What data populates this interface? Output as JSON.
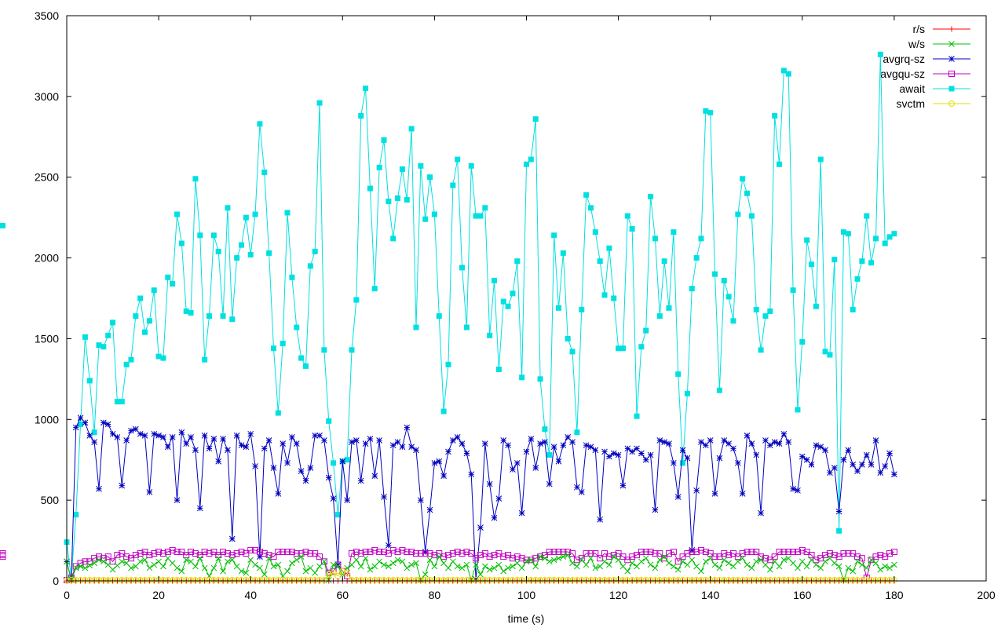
{
  "chart_data": {
    "type": "line",
    "title": "",
    "xlabel": "time (s)",
    "ylabel": "",
    "xlim": [
      0,
      200
    ],
    "ylim": [
      0,
      3500
    ],
    "xticks": [
      0,
      20,
      40,
      60,
      80,
      100,
      120,
      140,
      160,
      180,
      200
    ],
    "yticks": [
      0,
      500,
      1000,
      1500,
      2000,
      2500,
      3000,
      3500
    ],
    "xtick_labels": [
      "0",
      "20",
      "40",
      "60",
      "80",
      "100",
      "120",
      "140",
      "160",
      "180",
      "200"
    ],
    "ytick_labels": [
      "0",
      "500",
      "1000",
      "1500",
      "2000",
      "2500",
      "3000",
      "3500"
    ],
    "grid": false,
    "legend_position": "top-right",
    "x": {
      "start": 0,
      "step": 1,
      "count": 181
    },
    "series": [
      {
        "name": "r/s",
        "color": "#ff0000",
        "marker": "plus",
        "values": [
          0,
          0,
          0,
          0,
          0,
          0,
          0,
          0,
          0,
          0,
          0,
          0,
          0,
          0,
          0,
          0,
          0,
          0,
          0,
          0,
          0,
          0,
          0,
          0,
          0,
          0,
          0,
          0,
          0,
          0,
          0,
          0,
          0,
          0,
          0,
          0,
          0,
          0,
          0,
          0,
          0,
          0,
          0,
          0,
          0,
          0,
          0,
          0,
          0,
          0,
          0,
          0,
          0,
          0,
          0,
          0,
          0,
          0,
          0,
          0,
          0,
          0,
          0,
          0,
          0,
          0,
          0,
          0,
          0,
          0,
          0,
          0,
          0,
          0,
          0,
          0,
          0,
          0,
          0,
          0,
          0,
          0,
          0,
          0,
          0,
          0,
          0,
          0,
          0,
          0,
          0,
          0,
          0,
          0,
          0,
          0,
          0,
          0,
          0,
          0,
          0,
          0,
          0,
          0,
          0,
          0,
          0,
          0,
          0,
          0,
          0,
          0,
          0,
          0,
          0,
          0,
          0,
          0,
          0,
          0,
          0,
          0,
          0,
          0,
          0,
          0,
          0,
          0,
          0,
          0,
          0,
          0,
          0,
          0,
          0,
          0,
          0,
          0,
          0,
          0,
          0,
          0,
          0,
          0,
          0,
          0,
          0,
          0,
          0,
          0,
          0,
          0,
          0,
          0,
          0,
          0,
          0,
          0,
          0,
          0,
          0,
          0,
          0,
          0,
          0,
          0,
          0,
          0,
          0,
          0,
          0,
          0,
          0,
          0,
          0,
          0,
          0,
          0,
          0,
          0,
          0
        ]
      },
      {
        "name": "w/s",
        "color": "#00c000",
        "marker": "cross",
        "values": [
          120,
          5,
          80,
          90,
          80,
          95,
          110,
          130,
          120,
          100,
          70,
          95,
          120,
          110,
          80,
          90,
          120,
          130,
          80,
          100,
          120,
          90,
          140,
          110,
          80,
          60,
          130,
          120,
          90,
          140,
          80,
          30,
          80,
          140,
          60,
          120,
          130,
          90,
          60,
          50,
          130,
          100,
          80,
          40,
          140,
          90,
          100,
          30,
          60,
          110,
          130,
          150,
          60,
          80,
          50,
          90,
          120,
          5,
          100,
          90,
          40,
          80,
          100,
          130,
          90,
          140,
          70,
          90,
          120,
          100,
          90,
          110,
          130,
          120,
          80,
          100,
          110,
          5,
          40,
          130,
          90,
          150,
          110,
          80,
          120,
          90,
          80,
          100,
          5,
          100,
          40,
          90,
          70,
          80,
          100,
          60,
          80,
          90,
          110,
          80,
          120,
          130,
          90,
          150,
          140,
          120,
          130,
          140,
          150,
          160,
          110,
          90,
          130,
          100,
          140,
          80,
          90,
          120,
          100,
          150,
          130,
          90,
          60,
          110,
          90,
          120,
          140,
          100,
          80,
          130,
          150,
          110,
          90,
          70,
          120,
          100,
          130,
          90,
          60,
          120,
          140,
          100,
          80,
          130,
          110,
          90,
          120,
          140,
          100,
          80,
          120,
          130,
          100,
          70,
          120,
          90,
          130,
          140,
          110,
          80,
          120,
          90,
          130,
          100,
          80,
          120,
          140,
          110,
          90,
          5,
          80,
          60,
          120,
          100,
          80,
          130,
          110,
          70,
          90,
          80,
          100
        ]
      },
      {
        "name": "avgrq-sz",
        "color": "#0000c0",
        "marker": "star",
        "values": [
          120,
          5,
          950,
          1010,
          980,
          900,
          860,
          570,
          980,
          970,
          910,
          890,
          590,
          870,
          930,
          940,
          910,
          900,
          550,
          910,
          900,
          890,
          830,
          890,
          500,
          920,
          850,
          890,
          810,
          450,
          900,
          820,
          880,
          740,
          880,
          810,
          260,
          900,
          840,
          830,
          910,
          710,
          150,
          820,
          870,
          700,
          540,
          850,
          730,
          890,
          850,
          680,
          620,
          700,
          900,
          900,
          870,
          640,
          510,
          100,
          740,
          500,
          860,
          870,
          620,
          850,
          880,
          650,
          870,
          520,
          220,
          840,
          860,
          830,
          950,
          830,
          810,
          500,
          180,
          440,
          730,
          740,
          650,
          800,
          870,
          890,
          850,
          790,
          660,
          10,
          330,
          850,
          600,
          390,
          510,
          870,
          840,
          690,
          730,
          420,
          800,
          880,
          700,
          850,
          860,
          600,
          830,
          740,
          840,
          890,
          860,
          580,
          550,
          840,
          830,
          810,
          380,
          800,
          770,
          790,
          780,
          590,
          820,
          800,
          820,
          790,
          750,
          780,
          440,
          870,
          860,
          850,
          730,
          520,
          810,
          760,
          190,
          560,
          860,
          840,
          870,
          540,
          760,
          870,
          850,
          820,
          730,
          540,
          900,
          850,
          780,
          420,
          870,
          840,
          860,
          850,
          910,
          860,
          570,
          560,
          770,
          750,
          720,
          840,
          830,
          810,
          670,
          700,
          430,
          750,
          810,
          720,
          680,
          720,
          780,
          720,
          870,
          670,
          710,
          790,
          660
        ]
      },
      {
        "name": "avgqu-sz",
        "color": "#c000c0",
        "marker": "box",
        "values": [
          5,
          20,
          90,
          110,
          120,
          120,
          140,
          150,
          140,
          150,
          120,
          160,
          170,
          150,
          140,
          160,
          170,
          180,
          160,
          170,
          180,
          170,
          180,
          190,
          180,
          180,
          160,
          180,
          170,
          160,
          180,
          170,
          180,
          160,
          180,
          170,
          160,
          170,
          180,
          170,
          190,
          190,
          180,
          170,
          160,
          150,
          180,
          180,
          180,
          180,
          170,
          170,
          180,
          170,
          170,
          150,
          120,
          50,
          60,
          100,
          60,
          30,
          170,
          180,
          170,
          180,
          180,
          190,
          180,
          180,
          170,
          190,
          180,
          190,
          180,
          180,
          170,
          170,
          170,
          170,
          160,
          170,
          150,
          160,
          170,
          180,
          170,
          180,
          170,
          140,
          160,
          170,
          150,
          160,
          170,
          150,
          160,
          140,
          150,
          140,
          130,
          130,
          140,
          150,
          160,
          180,
          180,
          180,
          180,
          180,
          170,
          130,
          140,
          170,
          170,
          170,
          140,
          170,
          150,
          160,
          170,
          150,
          130,
          150,
          160,
          180,
          180,
          180,
          170,
          170,
          140,
          170,
          180,
          120,
          150,
          170,
          180,
          180,
          190,
          180,
          170,
          150,
          150,
          170,
          160,
          170,
          150,
          170,
          180,
          180,
          180,
          150,
          140,
          130,
          150,
          180,
          180,
          180,
          180,
          180,
          190,
          180,
          160,
          130,
          140,
          160,
          170,
          160,
          150,
          170,
          170,
          170,
          150,
          140,
          20,
          130,
          150,
          160,
          150,
          170,
          180,
          170,
          150,
          170,
          160,
          170,
          170
        ]
      },
      {
        "name": "await",
        "color": "#00e0e0",
        "marker": "filled-box",
        "values": [
          240,
          20,
          410,
          970,
          1510,
          1240,
          920,
          1460,
          1450,
          1520,
          1600,
          1110,
          1110,
          1340,
          1370,
          1640,
          1750,
          1540,
          1610,
          1800,
          1390,
          1380,
          1880,
          1840,
          2270,
          2090,
          1670,
          1660,
          2490,
          2140,
          1370,
          1640,
          2140,
          2040,
          1640,
          2310,
          1620,
          2000,
          2080,
          2250,
          2020,
          2270,
          2830,
          2530,
          2030,
          1440,
          1040,
          1470,
          2280,
          1880,
          1570,
          1380,
          1330,
          1950,
          2040,
          2960,
          1430,
          990,
          730,
          410,
          740,
          750,
          1430,
          1740,
          2880,
          3050,
          2430,
          1810,
          2560,
          2730,
          2350,
          2120,
          2370,
          2550,
          2360,
          2800,
          1570,
          2570,
          2240,
          2500,
          2270,
          1640,
          1050,
          1340,
          2450,
          2610,
          1940,
          1570,
          2570,
          2260,
          2260,
          2310,
          1520,
          1860,
          1310,
          1730,
          1700,
          1780,
          1980,
          1260,
          2580,
          2610,
          2860,
          1250,
          940,
          780,
          2140,
          1690,
          2030,
          1500,
          1420,
          920,
          1680,
          2390,
          2310,
          2160,
          1980,
          1770,
          2060,
          1750,
          1440,
          1440,
          2260,
          2180,
          1020,
          1450,
          1550,
          2380,
          2120,
          1640,
          1980,
          1690,
          2160,
          1280,
          730,
          1160,
          1810,
          2000,
          2120,
          2910,
          2900,
          1900,
          1180,
          1860,
          1760,
          1610,
          2270,
          2490,
          2400,
          2260,
          1680,
          1430,
          1640,
          1670,
          2880,
          2580,
          3160,
          3140,
          1800,
          1060,
          1480,
          2110,
          1960,
          1700,
          2610,
          1420,
          1400,
          1990,
          310,
          2160,
          2150,
          1680,
          1870,
          1980,
          2260,
          1970,
          2120,
          3260,
          2090,
          2130,
          2150,
          2200
        ]
      },
      {
        "name": "svctm",
        "color": "#e0e000",
        "marker": "circle",
        "values": [
          5,
          5,
          5,
          5,
          5,
          5,
          5,
          5,
          5,
          5,
          5,
          5,
          5,
          5,
          5,
          5,
          5,
          5,
          5,
          5,
          5,
          5,
          5,
          5,
          5,
          5,
          5,
          5,
          5,
          5,
          5,
          5,
          5,
          5,
          5,
          5,
          5,
          5,
          5,
          5,
          5,
          5,
          5,
          5,
          5,
          5,
          5,
          5,
          5,
          5,
          5,
          5,
          5,
          5,
          5,
          5,
          5,
          40,
          50,
          30,
          60,
          50,
          5,
          5,
          5,
          5,
          5,
          5,
          5,
          5,
          5,
          5,
          5,
          5,
          5,
          5,
          5,
          5,
          5,
          5,
          5,
          5,
          5,
          5,
          5,
          5,
          5,
          5,
          5,
          5,
          5,
          5,
          5,
          5,
          5,
          5,
          5,
          5,
          5,
          5,
          5,
          5,
          5,
          5,
          5,
          5,
          5,
          5,
          5,
          5,
          5,
          5,
          5,
          5,
          5,
          5,
          5,
          5,
          5,
          5,
          5,
          5,
          5,
          5,
          5,
          5,
          5,
          5,
          5,
          5,
          5,
          5,
          5,
          5,
          5,
          5,
          5,
          5,
          5,
          5,
          5,
          5,
          5,
          5,
          5,
          5,
          5,
          5,
          5,
          5,
          5,
          5,
          5,
          5,
          5,
          5,
          5,
          5,
          5,
          5,
          5,
          5,
          5,
          5,
          5,
          5,
          5,
          5,
          5,
          5,
          5,
          5,
          5,
          5,
          5,
          5,
          5,
          5,
          5,
          5,
          5
        ]
      }
    ]
  }
}
